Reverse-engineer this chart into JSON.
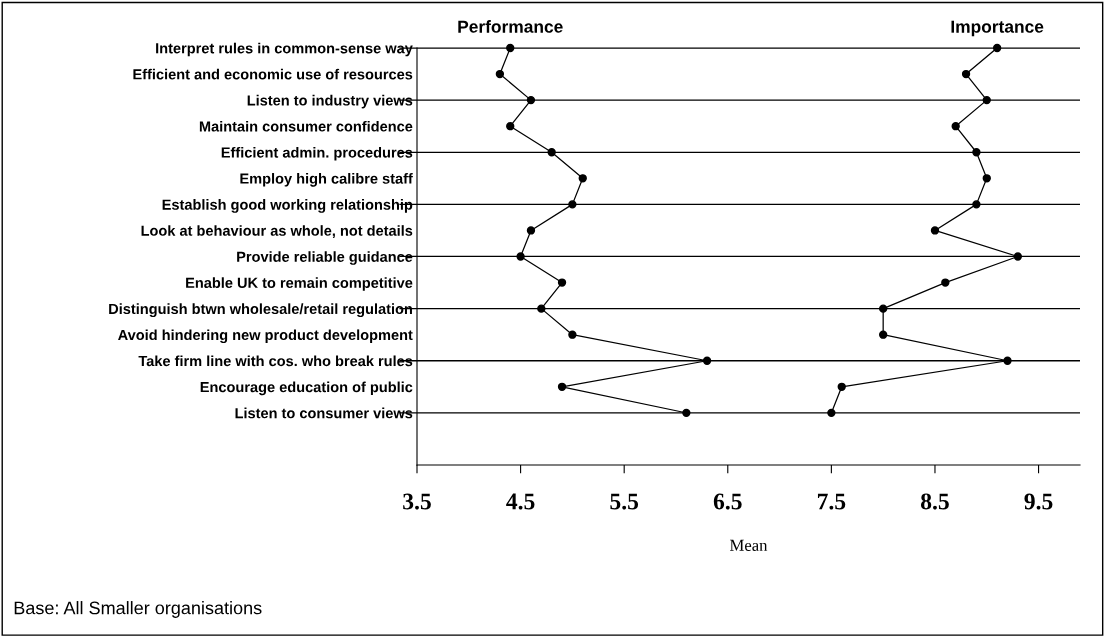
{
  "chart_data": {
    "type": "line",
    "orientation": "horizontal",
    "xlabel": "Mean",
    "categories": [
      "Interpret rules in common-sense way",
      "Efficient and economic use of resources",
      "Listen to industry views",
      "Maintain consumer confidence",
      "Efficient admin. procedures",
      "Employ high calibre staff",
      "Establish good working relationship",
      "Look at behaviour as whole, not details",
      "Provide reliable guidance",
      "Enable UK to remain competitive",
      "Distinguish btwn wholesale/retail regulation",
      "Avoid hindering new product development",
      "Take firm line with cos. who break rules",
      "Encourage education of public",
      "Listen to consumer views"
    ],
    "series": [
      {
        "name": "Performance",
        "color": "#000000",
        "values": [
          4.4,
          4.3,
          4.6,
          4.4,
          4.8,
          5.1,
          5.0,
          4.6,
          4.5,
          4.9,
          4.7,
          5.0,
          6.3,
          4.9,
          6.1
        ]
      },
      {
        "name": "Importance",
        "color": "#000000",
        "values": [
          9.1,
          8.8,
          9.0,
          8.7,
          8.9,
          9.0,
          8.9,
          8.5,
          9.3,
          8.6,
          8.0,
          8.0,
          9.2,
          7.6,
          7.5
        ]
      }
    ],
    "xlim": [
      3.5,
      9.9
    ],
    "xticks": [
      3.5,
      4.5,
      5.5,
      6.5,
      7.5,
      8.5,
      9.5
    ],
    "marker": "circle",
    "line_style": "solid",
    "grid": "y",
    "legend": false,
    "annotations": [
      "Base: All Smaller organisations"
    ]
  }
}
